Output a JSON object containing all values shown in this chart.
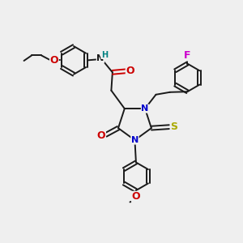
{
  "bg_color": "#efefef",
  "bond_color": "#1a1a1a",
  "bond_width": 1.4,
  "figsize": [
    3.0,
    3.0
  ],
  "dpi": 100,
  "colors": {
    "N": "#0000cc",
    "O": "#cc0000",
    "S": "#aaaa00",
    "F": "#cc00cc",
    "H": "#008080",
    "C": "#1a1a1a"
  }
}
